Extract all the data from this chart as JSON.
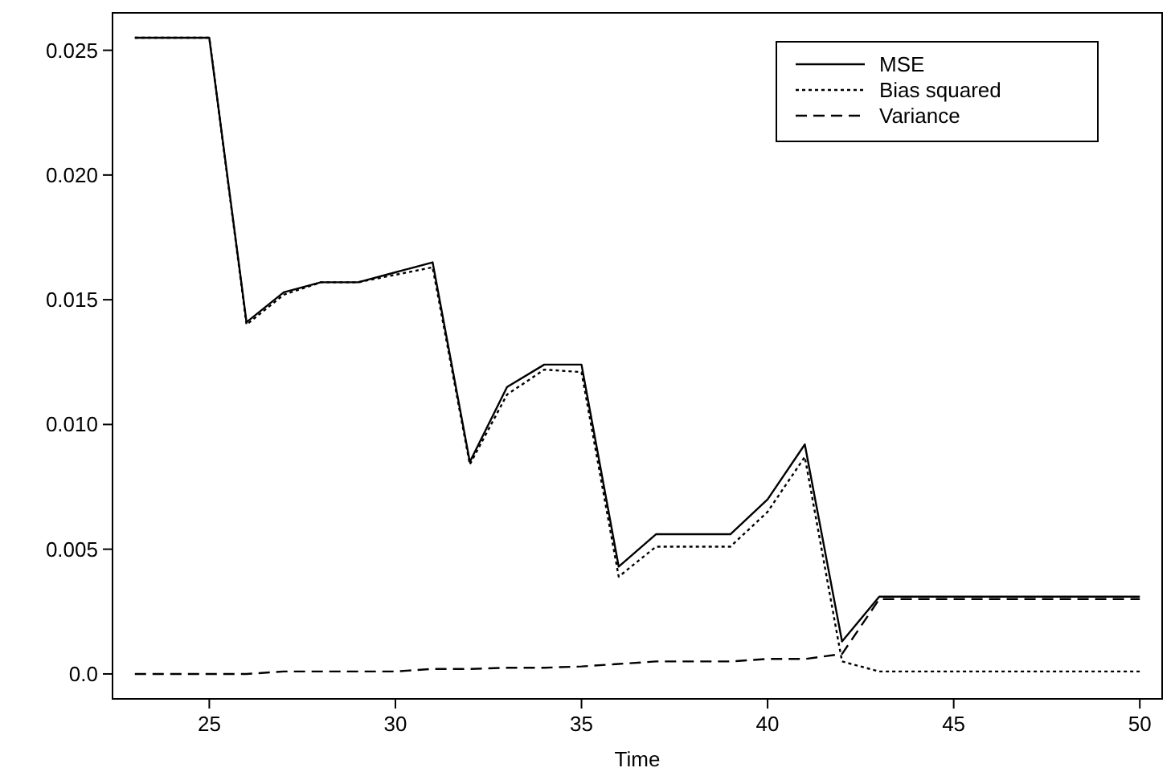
{
  "chart_data": {
    "type": "line",
    "xlabel": "Time",
    "x": [
      23,
      24,
      25,
      26,
      27,
      28,
      29,
      30,
      31,
      32,
      33,
      34,
      35,
      36,
      37,
      38,
      39,
      40,
      41,
      42,
      43,
      44,
      45,
      46,
      47,
      48,
      49,
      50
    ],
    "series": [
      {
        "name": "MSE",
        "color": "#000000",
        "line_style": "solid",
        "values": [
          0.0255,
          0.0255,
          0.0255,
          0.0141,
          0.0153,
          0.0157,
          0.0157,
          0.0161,
          0.0165,
          0.0085,
          0.0115,
          0.0124,
          0.0124,
          0.0043,
          0.0056,
          0.0056,
          0.0056,
          0.007,
          0.0092,
          0.0013,
          0.0031,
          0.0031,
          0.0031,
          0.0031,
          0.0031,
          0.0031,
          0.0031,
          0.0031
        ]
      },
      {
        "name": "Bias squared",
        "color": "#000000",
        "line_style": "dotted",
        "values": [
          0.0255,
          0.0255,
          0.0255,
          0.014,
          0.0152,
          0.0157,
          0.0157,
          0.016,
          0.0163,
          0.0084,
          0.0112,
          0.0122,
          0.0121,
          0.0039,
          0.0051,
          0.0051,
          0.0051,
          0.0065,
          0.0087,
          0.0005,
          0.0001,
          0.0001,
          0.0001,
          0.0001,
          0.0001,
          0.0001,
          0.0001,
          0.0001
        ]
      },
      {
        "name": "Variance",
        "color": "#000000",
        "line_style": "dashed",
        "values": [
          0,
          0,
          0,
          0,
          0.0001,
          0.0001,
          0.0001,
          0.0001,
          0.0002,
          0.0002,
          0.00025,
          0.00025,
          0.0003,
          0.0004,
          0.0005,
          0.0005,
          0.0005,
          0.0006,
          0.0006,
          0.0008,
          0.003,
          0.003,
          0.003,
          0.003,
          0.003,
          0.003,
          0.003,
          0.003
        ]
      }
    ],
    "xlim": [
      22.4,
      50.6
    ],
    "xticks": [
      25,
      30,
      35,
      40,
      45,
      50
    ],
    "ylim": [
      -0.001,
      0.0265
    ],
    "yticks": [
      {
        "value": 0,
        "label": "0.0"
      },
      {
        "value": 0.005,
        "label": "0.005"
      },
      {
        "value": 0.01,
        "label": "0.010"
      },
      {
        "value": 0.015,
        "label": "0.015"
      },
      {
        "value": 0.02,
        "label": "0.020"
      },
      {
        "value": 0.025,
        "label": "0.025"
      }
    ],
    "legend": "top right",
    "grid": false
  }
}
